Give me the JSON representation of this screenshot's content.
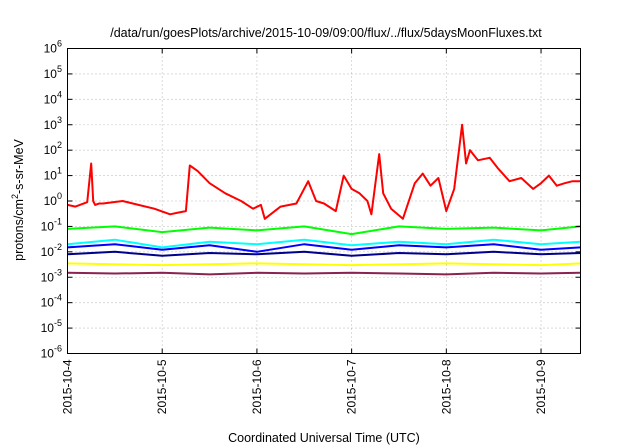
{
  "chart_data": {
    "type": "line",
    "title": "/data/run/goesPlots/archive/2015-10-09/09:00/flux/../flux/5daysMoonFluxes.txt",
    "xlabel": "Coordinated Universal Time (UTC)",
    "ylabel_parts": {
      "pre": "protons/cm",
      "sup": "2",
      "post": "-s-sr-MeV"
    },
    "x_range": [
      "2015-10-04T00:00",
      "2015-10-09T10:00"
    ],
    "y_scale": "log",
    "ylim": [
      1e-06,
      1000000.0
    ],
    "grid": true,
    "legend": "none",
    "x_ticks": [
      {
        "x": "2015-10-04",
        "label": "2015-10-4"
      },
      {
        "x": "2015-10-05",
        "label": "2015-10-5"
      },
      {
        "x": "2015-10-06",
        "label": "2015-10-6"
      },
      {
        "x": "2015-10-07",
        "label": "2015-10-7"
      },
      {
        "x": "2015-10-08",
        "label": "2015-10-8"
      },
      {
        "x": "2015-10-09",
        "label": "2015-10-9"
      }
    ],
    "y_ticks": [
      {
        "value": 1e-06,
        "base": "10",
        "exp": "-6"
      },
      {
        "value": 1e-05,
        "base": "10",
        "exp": "-5"
      },
      {
        "value": 0.0001,
        "base": "10",
        "exp": "-4"
      },
      {
        "value": 0.001,
        "base": "10",
        "exp": "-3"
      },
      {
        "value": 0.01,
        "base": "10",
        "exp": "-2"
      },
      {
        "value": 0.1,
        "base": "10",
        "exp": "-1"
      },
      {
        "value": 1.0,
        "base": "10",
        "exp": "0"
      },
      {
        "value": 10.0,
        "base": "10",
        "exp": "1"
      },
      {
        "value": 100.0,
        "base": "10",
        "exp": "2"
      },
      {
        "value": 1000.0,
        "base": "10",
        "exp": "3"
      },
      {
        "value": 10000.0,
        "base": "10",
        "exp": "4"
      },
      {
        "value": 100000.0,
        "base": "10",
        "exp": "5"
      },
      {
        "value": 1000000.0,
        "base": "10",
        "exp": "6"
      }
    ],
    "series": [
      {
        "color": "#ff0000",
        "x": [
          "2015-10-04T00:00",
          "2015-10-04T02:00",
          "2015-10-04T05:00",
          "2015-10-04T06:00",
          "2015-10-04T06:30",
          "2015-10-04T07:00",
          "2015-10-04T08:00",
          "2015-10-04T09:00",
          "2015-10-04T14:00",
          "2015-10-04T18:00",
          "2015-10-04T22:00",
          "2015-10-05T02:00",
          "2015-10-05T04:00",
          "2015-10-05T06:00",
          "2015-10-05T07:00",
          "2015-10-05T09:00",
          "2015-10-05T12:00",
          "2015-10-05T16:00",
          "2015-10-05T20:00",
          "2015-10-05T23:00",
          "2015-10-06T01:00",
          "2015-10-06T02:00",
          "2015-10-06T06:00",
          "2015-10-06T10:00",
          "2015-10-06T13:00",
          "2015-10-06T15:00",
          "2015-10-06T17:00",
          "2015-10-06T20:00",
          "2015-10-06T22:00",
          "2015-10-07T00:00",
          "2015-10-07T02:00",
          "2015-10-07T04:00",
          "2015-10-07T05:00",
          "2015-10-07T07:00",
          "2015-10-07T08:00",
          "2015-10-07T10:00",
          "2015-10-07T13:00",
          "2015-10-07T16:00",
          "2015-10-07T18:00",
          "2015-10-07T20:00",
          "2015-10-07T22:00",
          "2015-10-08T00:00",
          "2015-10-08T02:00",
          "2015-10-08T04:00",
          "2015-10-08T05:00",
          "2015-10-08T06:00",
          "2015-10-08T08:00",
          "2015-10-08T11:00",
          "2015-10-08T13:00",
          "2015-10-08T16:00",
          "2015-10-08T19:00",
          "2015-10-08T22:00",
          "2015-10-09T00:00",
          "2015-10-09T02:00",
          "2015-10-09T04:00",
          "2015-10-09T06:00",
          "2015-10-09T08:00",
          "2015-10-09T10:00"
        ],
        "y": [
          0.7,
          0.6,
          0.9,
          30,
          1.0,
          0.7,
          0.8,
          0.8,
          1.0,
          0.7,
          0.5,
          0.3,
          0.35,
          0.4,
          25,
          15,
          5,
          2.0,
          1.0,
          0.5,
          0.7,
          0.2,
          0.6,
          0.8,
          6,
          1.0,
          0.8,
          0.4,
          10,
          3,
          2,
          1.0,
          0.3,
          70,
          2,
          0.5,
          0.2,
          5,
          12,
          4,
          8,
          0.4,
          3,
          1000,
          30,
          100,
          40,
          50,
          20,
          6,
          8,
          3,
          5,
          10,
          4,
          5,
          6,
          6
        ]
      },
      {
        "color": "#00ff00",
        "x": [
          "2015-10-04T00:00",
          "2015-10-04T12:00",
          "2015-10-05T00:00",
          "2015-10-05T12:00",
          "2015-10-06T00:00",
          "2015-10-06T12:00",
          "2015-10-07T00:00",
          "2015-10-07T12:00",
          "2015-10-08T00:00",
          "2015-10-08T12:00",
          "2015-10-09T00:00",
          "2015-10-09T10:00"
        ],
        "y": [
          0.08,
          0.1,
          0.06,
          0.09,
          0.07,
          0.1,
          0.05,
          0.1,
          0.08,
          0.09,
          0.07,
          0.1
        ]
      },
      {
        "color": "#00ffff",
        "x": [
          "2015-10-04T00:00",
          "2015-10-04T12:00",
          "2015-10-05T00:00",
          "2015-10-05T12:00",
          "2015-10-06T00:00",
          "2015-10-06T12:00",
          "2015-10-07T00:00",
          "2015-10-07T12:00",
          "2015-10-08T00:00",
          "2015-10-08T12:00",
          "2015-10-09T00:00",
          "2015-10-09T10:00"
        ],
        "y": [
          0.02,
          0.03,
          0.015,
          0.025,
          0.02,
          0.03,
          0.018,
          0.025,
          0.02,
          0.03,
          0.02,
          0.025
        ]
      },
      {
        "color": "#0000ff",
        "x": [
          "2015-10-04T00:00",
          "2015-10-04T12:00",
          "2015-10-05T00:00",
          "2015-10-05T12:00",
          "2015-10-06T00:00",
          "2015-10-06T12:00",
          "2015-10-07T00:00",
          "2015-10-07T12:00",
          "2015-10-08T00:00",
          "2015-10-08T12:00",
          "2015-10-09T00:00",
          "2015-10-09T10:00"
        ],
        "y": [
          0.015,
          0.02,
          0.012,
          0.018,
          0.01,
          0.02,
          0.012,
          0.018,
          0.015,
          0.02,
          0.012,
          0.015
        ]
      },
      {
        "color": "#00008b",
        "x": [
          "2015-10-04T00:00",
          "2015-10-04T12:00",
          "2015-10-05T00:00",
          "2015-10-05T12:00",
          "2015-10-06T00:00",
          "2015-10-06T12:00",
          "2015-10-07T00:00",
          "2015-10-07T12:00",
          "2015-10-08T00:00",
          "2015-10-08T12:00",
          "2015-10-09T00:00",
          "2015-10-09T10:00"
        ],
        "y": [
          0.008,
          0.01,
          0.007,
          0.009,
          0.008,
          0.01,
          0.007,
          0.009,
          0.008,
          0.01,
          0.008,
          0.009
        ]
      },
      {
        "color": "#ffff00",
        "x": [
          "2015-10-04T00:00",
          "2015-10-05T00:00",
          "2015-10-06T00:00",
          "2015-10-07T00:00",
          "2015-10-08T00:00",
          "2015-10-09T00:00",
          "2015-10-09T10:00"
        ],
        "y": [
          0.0035,
          0.003,
          0.0035,
          0.003,
          0.0035,
          0.003,
          0.0035
        ]
      },
      {
        "color": "#8b2252",
        "x": [
          "2015-10-04T00:00",
          "2015-10-04T12:00",
          "2015-10-05T00:00",
          "2015-10-05T12:00",
          "2015-10-06T00:00",
          "2015-10-06T12:00",
          "2015-10-07T00:00",
          "2015-10-07T12:00",
          "2015-10-08T00:00",
          "2015-10-08T12:00",
          "2015-10-09T00:00",
          "2015-10-09T10:00"
        ],
        "y": [
          0.0015,
          0.0014,
          0.0015,
          0.0013,
          0.0015,
          0.0014,
          0.0015,
          0.0014,
          0.0013,
          0.0015,
          0.0014,
          0.0015
        ]
      }
    ]
  }
}
